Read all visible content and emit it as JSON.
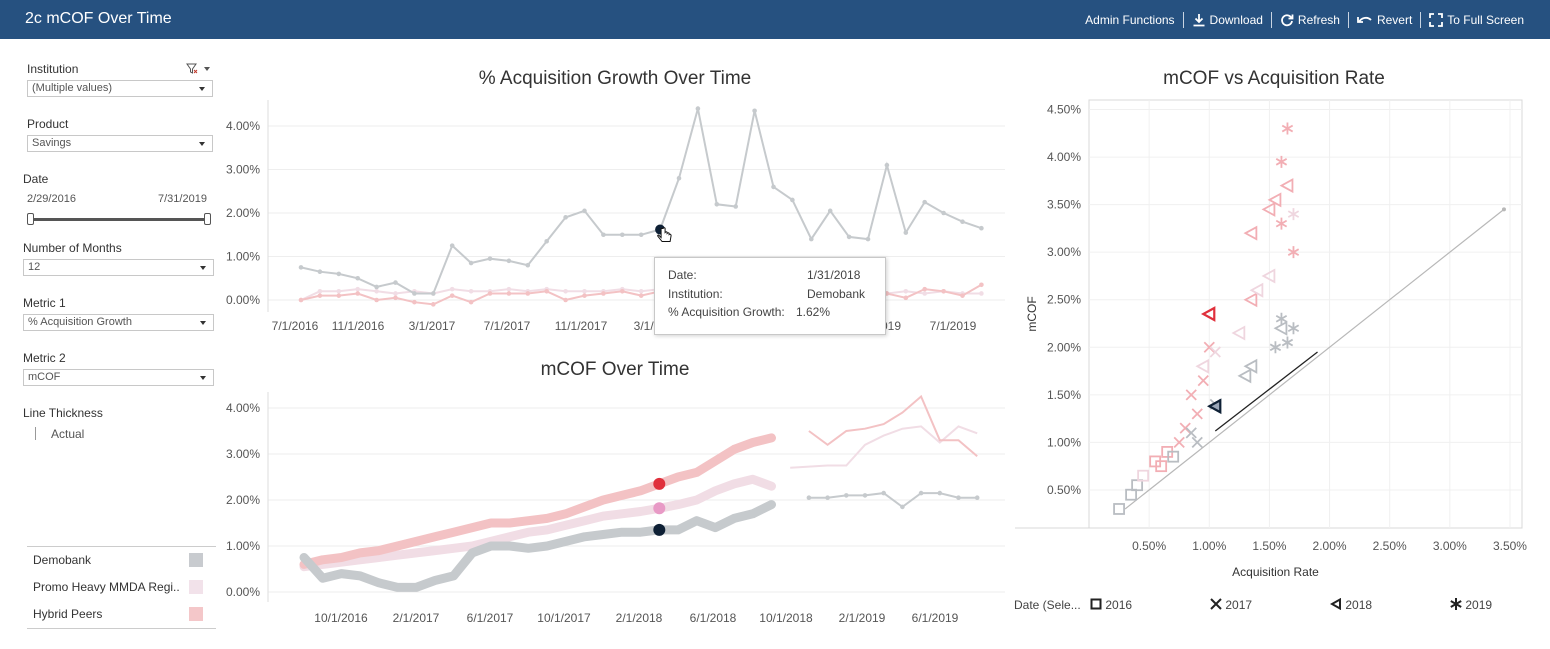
{
  "header": {
    "title": "2c mCOF Over Time",
    "toolbar": {
      "admin": "Admin Functions",
      "download": "Download",
      "refresh": "Refresh",
      "revert": "Revert",
      "full_screen": "To Full Screen"
    }
  },
  "filters": {
    "institution": {
      "label": "Institution",
      "value": "(Multiple values)"
    },
    "product": {
      "label": "Product",
      "value": "Savings"
    },
    "date": {
      "label": "Date",
      "start": "2/29/2016",
      "end": "7/31/2019"
    },
    "months": {
      "label": "Number of Months",
      "value": "12"
    },
    "metric1": {
      "label": "Metric 1",
      "value": "% Acquisition Growth"
    },
    "metric2": {
      "label": "Metric 2",
      "value": "mCOF"
    },
    "line_thickness": {
      "label": "Line Thickness",
      "value": "Actual"
    }
  },
  "legend": {
    "items": [
      {
        "label": "Demobank",
        "color": "#c8cbcf"
      },
      {
        "label": "Promo Heavy MMDA Regi..",
        "color": "#f2e2ea"
      },
      {
        "label": "Hybrid Peers",
        "color": "#f4c7c9"
      }
    ]
  },
  "colors": {
    "demobank_line": "#c6cacd",
    "hybrid_line": "#f3c2c4",
    "promo_line": "#f1dde5",
    "demobank_highlight": "#0e2035",
    "hybrid_highlight": "#e0303c",
    "promo_highlight": "#e89ac6"
  },
  "tooltip": {
    "date_label": "Date:",
    "date_value": "1/31/2018",
    "institution_label": "Institution:",
    "institution_value": "Demobank",
    "metric_label": "% Acquisition Growth:",
    "metric_value": "1.62%"
  },
  "scatter_legend": {
    "title": "Date (Sele...",
    "items": [
      {
        "label": "2016",
        "icon": "square-icon"
      },
      {
        "label": "2017",
        "icon": "x-icon"
      },
      {
        "label": "2018",
        "icon": "triangle-icon"
      },
      {
        "label": "2019",
        "icon": "asterisk-icon"
      }
    ]
  },
  "chart_data": [
    {
      "type": "line",
      "title": "% Acquisition Growth Over Time",
      "x_ticks": [
        "7/1/2016",
        "11/1/2016",
        "3/1/2017",
        "7/1/2017",
        "11/1/2017",
        "3/1/2018",
        "7/1/2018",
        "11/1/2018",
        "3/1/2019",
        "7/1/2019"
      ],
      "x_ticks_visible": [
        "7/1/2016",
        "11/1/2016",
        "3/1/2017",
        "7/1/2017",
        "11/1/2017",
        "3/1/2",
        "019",
        "7/1/2019"
      ],
      "y_ticks": [
        "0.00%",
        "1.00%",
        "2.00%",
        "3.00%",
        "4.00%"
      ],
      "ylim": [
        0,
        4.6
      ],
      "series": [
        {
          "name": "Demobank",
          "values": [
            0.75,
            0.65,
            0.6,
            0.5,
            0.3,
            0.4,
            0.15,
            0.15,
            1.25,
            0.85,
            0.95,
            0.9,
            0.8,
            1.35,
            1.9,
            2.05,
            1.5,
            1.5,
            1.5,
            1.62,
            2.8,
            4.4,
            2.2,
            2.15,
            4.35,
            2.6,
            2.3,
            1.4,
            2.05,
            1.45,
            1.4,
            3.1,
            1.55,
            2.25,
            2.0,
            1.8,
            1.65
          ]
        },
        {
          "name": "Hybrid Peers",
          "values": [
            0.0,
            0.1,
            0.1,
            0.15,
            0.0,
            0.05,
            -0.05,
            -0.1,
            0.1,
            -0.05,
            0.15,
            0.15,
            0.15,
            0.2,
            0.0,
            0.1,
            0.15,
            0.2,
            0.1,
            0.2,
            0.15,
            0.1,
            0.2,
            0.15,
            0.1,
            0.15,
            0.1,
            0.2,
            0.15,
            0.1,
            0.1,
            0.15,
            0.05,
            0.25,
            0.2,
            0.1,
            0.35
          ]
        },
        {
          "name": "Promo Heavy MMDA Regi..",
          "values": [
            0.0,
            0.2,
            0.2,
            0.25,
            0.2,
            0.15,
            0.2,
            0.15,
            0.25,
            0.2,
            0.2,
            0.25,
            0.2,
            0.25,
            0.2,
            0.2,
            0.2,
            0.25,
            0.2,
            0.25,
            0.15,
            0.2,
            0.15,
            0.2,
            0.15,
            0.2,
            0.15,
            0.2,
            0.15,
            0.15,
            0.2,
            0.15,
            0.2,
            0.15,
            0.2,
            0.15,
            0.15
          ]
        }
      ]
    },
    {
      "type": "line",
      "title": "mCOF Over Time",
      "x_ticks": [
        "10/1/2016",
        "2/1/2017",
        "6/1/2017",
        "10/1/2017",
        "2/1/2018",
        "6/1/2018",
        "10/1/2018",
        "2/1/2019",
        "6/1/2019"
      ],
      "y_ticks": [
        "0.00%",
        "1.00%",
        "2.00%",
        "3.00%",
        "4.00%"
      ],
      "ylim": [
        -0.2,
        4.6
      ],
      "series": [
        {
          "name": "Demobank",
          "values": [
            0.75,
            0.3,
            0.4,
            0.35,
            0.2,
            0.1,
            0.1,
            0.25,
            0.35,
            0.85,
            1.0,
            1.0,
            0.95,
            1.0,
            1.1,
            1.2,
            1.25,
            1.3,
            1.3,
            1.35,
            1.35,
            1.55,
            1.4,
            1.6,
            1.7,
            1.9,
            null,
            2.05,
            2.05,
            2.1,
            2.1,
            2.15,
            1.85,
            2.15,
            2.15,
            2.05,
            2.05
          ]
        },
        {
          "name": "Hybrid Peers",
          "values": [
            0.6,
            0.7,
            0.75,
            0.85,
            0.9,
            1.0,
            1.1,
            1.2,
            1.3,
            1.4,
            1.5,
            1.5,
            1.55,
            1.6,
            1.7,
            1.85,
            2.0,
            2.1,
            2.2,
            2.35,
            2.5,
            2.6,
            2.85,
            3.1,
            3.25,
            3.35,
            null,
            3.5,
            3.2,
            3.5,
            3.55,
            3.65,
            3.9,
            4.25,
            3.3,
            3.3,
            2.95
          ]
        },
        {
          "name": "Promo Heavy MMDA Regi..",
          "values": [
            0.55,
            0.6,
            0.65,
            0.7,
            0.75,
            0.8,
            0.85,
            0.9,
            0.95,
            1.0,
            1.1,
            1.2,
            1.3,
            1.35,
            1.45,
            1.55,
            1.65,
            1.7,
            1.75,
            1.82,
            1.9,
            2.0,
            2.2,
            2.35,
            2.45,
            2.3,
            2.7,
            null,
            2.75,
            2.75,
            3.2,
            3.4,
            3.55,
            3.6,
            3.25,
            3.6,
            3.45
          ]
        }
      ],
      "highlight_point": {
        "x": "2/1/2018",
        "Demobank": 1.35,
        "Hybrid Peers": 2.35,
        "Promo Heavy MMDA Regi..": 1.82
      }
    },
    {
      "type": "scatter",
      "title": "mCOF vs Acquisition Rate",
      "xlabel": "Acquisition Rate",
      "ylabel": "mCOF",
      "x_ticks": [
        "0.50%",
        "1.00%",
        "1.50%",
        "2.00%",
        "2.50%",
        "3.00%",
        "3.50%"
      ],
      "y_ticks": [
        "0.50%",
        "1.00%",
        "1.50%",
        "2.00%",
        "2.50%",
        "3.00%",
        "3.50%",
        "4.00%",
        "4.50%"
      ],
      "xlim": [
        0.0,
        3.6
      ],
      "ylim": [
        0.1,
        4.6
      ],
      "points": [
        {
          "x": 0.25,
          "y": 0.3,
          "series": "Demobank",
          "year": "2016"
        },
        {
          "x": 0.35,
          "y": 0.45,
          "series": "Demobank",
          "year": "2016"
        },
        {
          "x": 0.4,
          "y": 0.55,
          "series": "Demobank",
          "year": "2016"
        },
        {
          "x": 0.45,
          "y": 0.65,
          "series": "Promo Heavy MMDA Regi..",
          "year": "2016"
        },
        {
          "x": 0.55,
          "y": 0.8,
          "series": "Hybrid Peers",
          "year": "2016"
        },
        {
          "x": 0.65,
          "y": 0.9,
          "series": "Hybrid Peers",
          "year": "2016"
        },
        {
          "x": 0.6,
          "y": 0.75,
          "series": "Hybrid Peers",
          "year": "2016"
        },
        {
          "x": 0.7,
          "y": 0.85,
          "series": "Demobank",
          "year": "2016"
        },
        {
          "x": 0.75,
          "y": 1.0,
          "series": "Hybrid Peers",
          "year": "2017"
        },
        {
          "x": 0.8,
          "y": 1.15,
          "series": "Hybrid Peers",
          "year": "2017"
        },
        {
          "x": 0.9,
          "y": 1.3,
          "series": "Hybrid Peers",
          "year": "2017"
        },
        {
          "x": 0.85,
          "y": 1.5,
          "series": "Hybrid Peers",
          "year": "2017"
        },
        {
          "x": 0.95,
          "y": 1.65,
          "series": "Hybrid Peers",
          "year": "2017"
        },
        {
          "x": 0.9,
          "y": 1.0,
          "series": "Demobank",
          "year": "2017"
        },
        {
          "x": 0.85,
          "y": 1.1,
          "series": "Demobank",
          "year": "2017"
        },
        {
          "x": 1.05,
          "y": 1.4,
          "series": "Demobank",
          "year": "2017"
        },
        {
          "x": 1.0,
          "y": 2.0,
          "series": "Hybrid Peers",
          "year": "2017"
        },
        {
          "x": 1.05,
          "y": 1.95,
          "series": "Promo Heavy MMDA Regi..",
          "year": "2017"
        },
        {
          "x": 0.95,
          "y": 1.8,
          "series": "Promo Heavy MMDA Regi..",
          "year": "2018"
        },
        {
          "x": 1.05,
          "y": 1.38,
          "series": "Demobank",
          "year": "2018"
        },
        {
          "x": 1.0,
          "y": 2.35,
          "series": "Hybrid Peers",
          "year": "2018"
        },
        {
          "x": 1.25,
          "y": 2.15,
          "series": "Promo Heavy MMDA Regi..",
          "year": "2018"
        },
        {
          "x": 1.35,
          "y": 2.5,
          "series": "Hybrid Peers",
          "year": "2018"
        },
        {
          "x": 1.4,
          "y": 2.6,
          "series": "Promo Heavy MMDA Regi..",
          "year": "2018"
        },
        {
          "x": 1.3,
          "y": 1.7,
          "series": "Demobank",
          "year": "2018"
        },
        {
          "x": 1.35,
          "y": 1.8,
          "series": "Demobank",
          "year": "2018"
        },
        {
          "x": 1.35,
          "y": 3.2,
          "series": "Hybrid Peers",
          "year": "2018"
        },
        {
          "x": 1.5,
          "y": 3.45,
          "series": "Hybrid Peers",
          "year": "2018"
        },
        {
          "x": 1.55,
          "y": 3.55,
          "series": "Hybrid Peers",
          "year": "2018"
        },
        {
          "x": 1.65,
          "y": 3.7,
          "series": "Hybrid Peers",
          "year": "2018"
        },
        {
          "x": 1.5,
          "y": 2.75,
          "series": "Promo Heavy MMDA Regi..",
          "year": "2018"
        },
        {
          "x": 1.6,
          "y": 2.2,
          "series": "Demobank",
          "year": "2018"
        },
        {
          "x": 1.65,
          "y": 4.3,
          "series": "Hybrid Peers",
          "year": "2019"
        },
        {
          "x": 1.6,
          "y": 3.95,
          "series": "Hybrid Peers",
          "year": "2019"
        },
        {
          "x": 1.7,
          "y": 3.0,
          "series": "Hybrid Peers",
          "year": "2019"
        },
        {
          "x": 1.6,
          "y": 3.3,
          "series": "Hybrid Peers",
          "year": "2019"
        },
        {
          "x": 1.7,
          "y": 3.4,
          "series": "Promo Heavy MMDA Regi..",
          "year": "2019"
        },
        {
          "x": 1.6,
          "y": 2.3,
          "series": "Demobank",
          "year": "2019"
        },
        {
          "x": 1.7,
          "y": 2.2,
          "series": "Demobank",
          "year": "2019"
        },
        {
          "x": 1.65,
          "y": 2.05,
          "series": "Demobank",
          "year": "2019"
        },
        {
          "x": 1.55,
          "y": 2.0,
          "series": "Demobank",
          "year": "2019"
        }
      ],
      "reference_line": [
        [
          0.3,
          0.3
        ],
        [
          3.45,
          3.45
        ]
      ]
    }
  ]
}
